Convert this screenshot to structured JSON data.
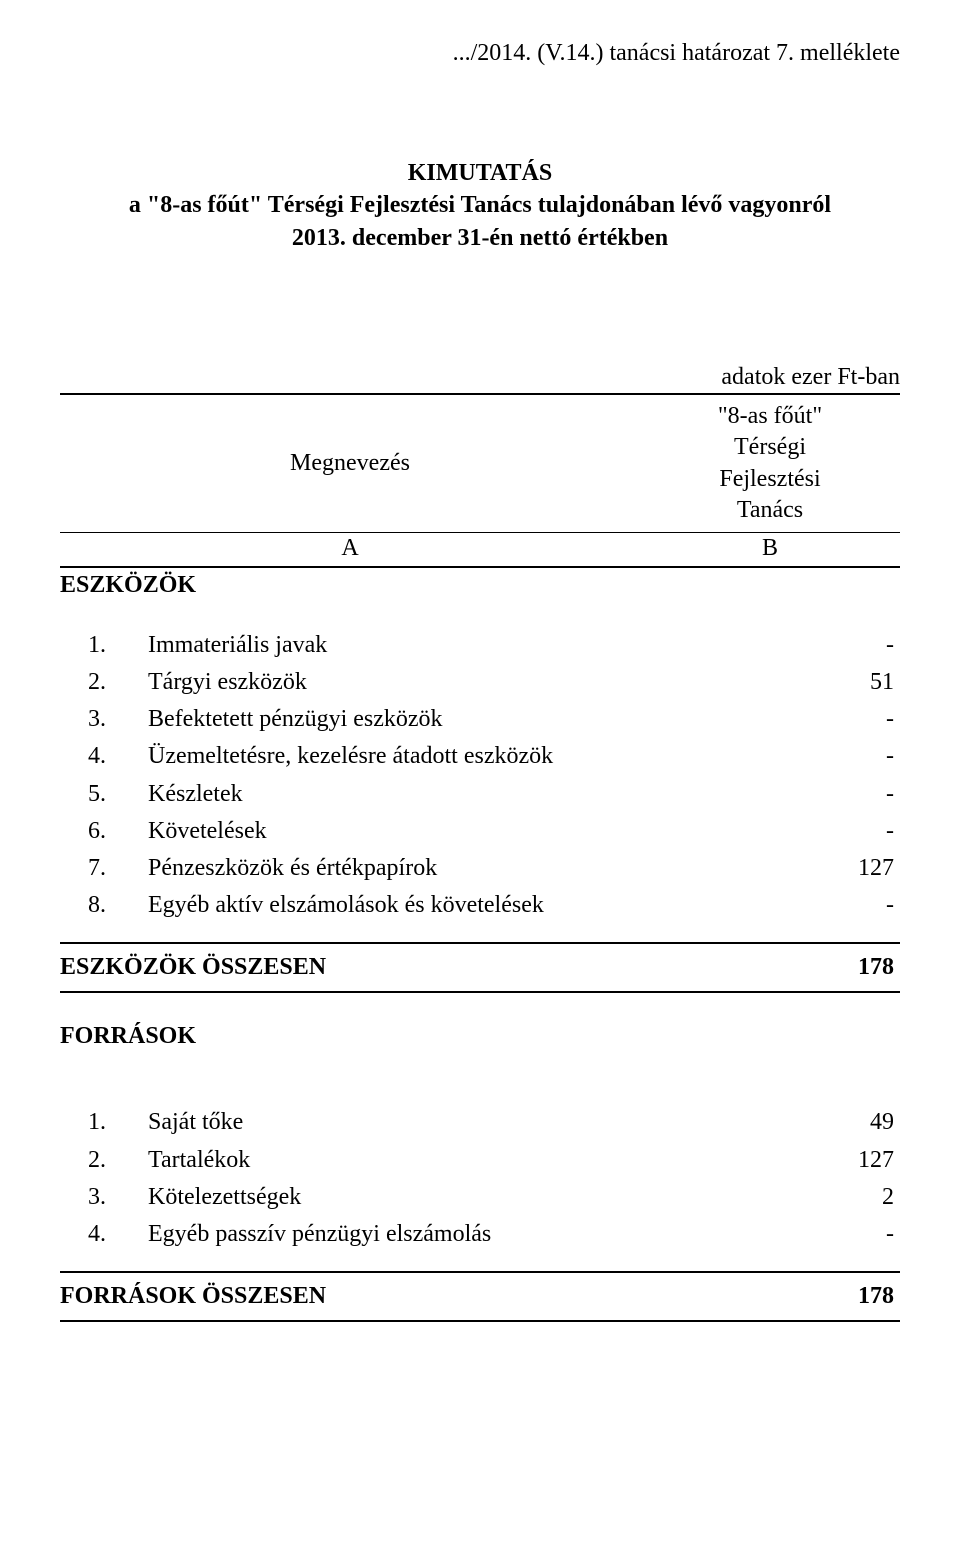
{
  "header": ".../2014. (V.14.) tanácsi  határozat 7. melléklete",
  "title": {
    "line1": "KIMUTATÁS",
    "line2": "a \"8-as főút\" Térségi Fejlesztési Tanács tulajdonában lévő vagyonról",
    "line3": "2013. december 31-én nettó értékben"
  },
  "meta_unit": "adatok ezer Ft-ban",
  "columns": {
    "left_label": "Megnevezés",
    "right_label_line1": "\"8-as főút\"",
    "right_label_line2": "Térségi",
    "right_label_line3": "Fejlesztési",
    "right_label_line4": "Tanács",
    "a": "A",
    "b": "B"
  },
  "sections": {
    "assets": {
      "label": "ESZKÖZÖK",
      "items": [
        {
          "num": "1.",
          "label": "Immateriális javak",
          "value": "-"
        },
        {
          "num": "2.",
          "label": "Tárgyi eszközök",
          "value": "51"
        },
        {
          "num": "3.",
          "label": "Befektetett pénzügyi eszközök",
          "value": "-"
        },
        {
          "num": "4.",
          "label": "Üzemeltetésre, kezelésre átadott eszközök",
          "value": "-"
        },
        {
          "num": "5.",
          "label": "Készletek",
          "value": "-"
        },
        {
          "num": "6.",
          "label": "Követelések",
          "value": "-"
        },
        {
          "num": "7.",
          "label": "Pénzeszközök és értékpapírok",
          "value": "127"
        },
        {
          "num": "8.",
          "label": "Egyéb aktív elszámolások és követelések",
          "value": "-"
        }
      ],
      "total_label": "ESZKÖZÖK ÖSSZESEN",
      "total_value": "178"
    },
    "sources": {
      "label": "FORRÁSOK",
      "items": [
        {
          "num": "1.",
          "label": "Saját tőke",
          "value": "49"
        },
        {
          "num": "2.",
          "label": "Tartalékok",
          "value": "127"
        },
        {
          "num": "3.",
          "label": "Kötelezettségek",
          "value": "2"
        },
        {
          "num": "4.",
          "label": "Egyéb passzív pénzügyi elszámolás",
          "value": "-"
        }
      ],
      "total_label": "FORRÁSOK ÖSSZESEN",
      "total_value": "178"
    }
  },
  "style": {
    "font_family": "Times New Roman",
    "text_color": "#000000",
    "background_color": "#ffffff",
    "border_color": "#000000",
    "base_fontsize": 24,
    "title_fontweight": "bold",
    "section_fontweight": "bold",
    "total_fontweight": "bold",
    "right_col_width": 260,
    "value_col_width": 140,
    "thin_rule": 1,
    "thick_rule": 2
  }
}
